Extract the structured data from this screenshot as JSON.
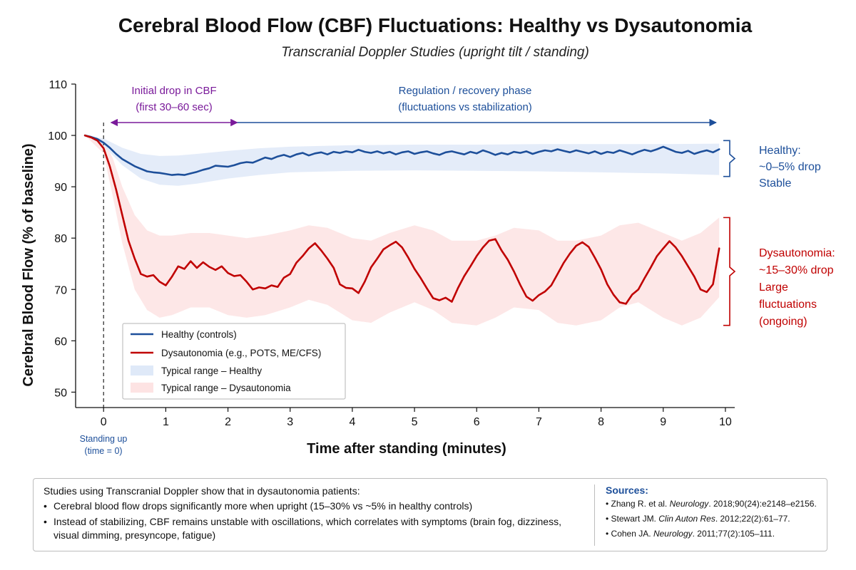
{
  "chart_data": {
    "type": "line",
    "title": "Cerebral Blood Flow (CBF) Fluctuations: Healthy vs Dysautonomia",
    "subtitle": "Transcranial Doppler Studies (upright tilt / standing)",
    "xlabel": "Time after standing (minutes)",
    "ylabel": "Cerebral Blood Flow (% of baseline)",
    "xlim": [
      -0.45,
      10.15
    ],
    "ylim": [
      47,
      110
    ],
    "xticks": [
      0,
      1,
      2,
      3,
      4,
      5,
      6,
      7,
      8,
      9,
      10
    ],
    "yticks": [
      50,
      60,
      70,
      80,
      90,
      100,
      110
    ],
    "grid": false,
    "legend_position": "lower-left",
    "series": [
      {
        "name": "Healthy (controls)",
        "color": "#1d4f9a",
        "x": [
          -0.3,
          -0.2,
          -0.1,
          0,
          0.1,
          0.2,
          0.3,
          0.4,
          0.5,
          0.6,
          0.7,
          0.8,
          0.9,
          1.0,
          1.1,
          1.2,
          1.3,
          1.4,
          1.5,
          1.6,
          1.7,
          1.8,
          1.9,
          2.0,
          2.1,
          2.2,
          2.3,
          2.4,
          2.5,
          2.6,
          2.7,
          2.8,
          2.9,
          3.0,
          3.1,
          3.2,
          3.3,
          3.4,
          3.5,
          3.6,
          3.7,
          3.8,
          3.9,
          4.0,
          4.1,
          4.2,
          4.3,
          4.4,
          4.5,
          4.6,
          4.7,
          4.8,
          4.9,
          5.0,
          5.1,
          5.2,
          5.3,
          5.4,
          5.5,
          5.6,
          5.7,
          5.8,
          5.9,
          6.0,
          6.1,
          6.2,
          6.3,
          6.4,
          6.5,
          6.6,
          6.7,
          6.8,
          6.9,
          7.0,
          7.1,
          7.2,
          7.3,
          7.4,
          7.5,
          7.6,
          7.7,
          7.8,
          7.9,
          8.0,
          8.1,
          8.2,
          8.3,
          8.4,
          8.5,
          8.6,
          8.7,
          8.8,
          8.9,
          9.0,
          9.1,
          9.2,
          9.3,
          9.4,
          9.5,
          9.6,
          9.7,
          9.8,
          9.9
        ],
        "values": [
          100.0,
          99.7,
          99.3,
          98.6,
          97.6,
          96.4,
          95.4,
          94.7,
          94.0,
          93.5,
          93.0,
          92.8,
          92.7,
          92.5,
          92.3,
          92.4,
          92.3,
          92.6,
          92.9,
          93.3,
          93.6,
          94.1,
          94.0,
          93.9,
          94.2,
          94.6,
          94.8,
          94.7,
          95.2,
          95.7,
          95.4,
          95.9,
          96.2,
          95.8,
          96.3,
          96.6,
          96.1,
          96.5,
          96.7,
          96.3,
          96.8,
          96.6,
          96.9,
          96.7,
          97.2,
          96.8,
          96.6,
          96.9,
          96.5,
          96.8,
          96.3,
          96.7,
          96.9,
          96.4,
          96.7,
          96.9,
          96.5,
          96.2,
          96.7,
          96.9,
          96.6,
          96.3,
          96.8,
          96.5,
          97.1,
          96.7,
          96.2,
          96.6,
          96.3,
          96.8,
          96.6,
          96.9,
          96.4,
          96.8,
          97.1,
          96.9,
          97.3,
          97.0,
          96.7,
          97.1,
          96.8,
          96.5,
          96.9,
          96.4,
          96.8,
          96.6,
          97.1,
          96.7,
          96.3,
          96.8,
          97.2,
          96.9,
          97.3,
          97.8,
          97.3,
          96.8,
          96.6,
          97.0,
          96.4,
          96.8,
          97.1,
          96.7,
          97.3
        ]
      },
      {
        "name": "Dysautonomia (e.g., POTS, ME/CFS)",
        "color": "#c00000",
        "x": [
          -0.3,
          -0.2,
          -0.1,
          0,
          0.1,
          0.2,
          0.3,
          0.4,
          0.5,
          0.6,
          0.7,
          0.8,
          0.9,
          1.0,
          1.1,
          1.2,
          1.3,
          1.4,
          1.5,
          1.6,
          1.7,
          1.8,
          1.9,
          2.0,
          2.1,
          2.2,
          2.3,
          2.4,
          2.5,
          2.6,
          2.7,
          2.8,
          2.9,
          3.0,
          3.1,
          3.2,
          3.3,
          3.4,
          3.5,
          3.6,
          3.7,
          3.8,
          3.9,
          4.0,
          4.1,
          4.2,
          4.3,
          4.4,
          4.5,
          4.6,
          4.7,
          4.8,
          4.9,
          5.0,
          5.1,
          5.2,
          5.3,
          5.4,
          5.5,
          5.6,
          5.7,
          5.8,
          5.9,
          6.0,
          6.1,
          6.2,
          6.3,
          6.4,
          6.5,
          6.6,
          6.7,
          6.8,
          6.9,
          7.0,
          7.1,
          7.2,
          7.3,
          7.4,
          7.5,
          7.6,
          7.7,
          7.8,
          7.9,
          8.0,
          8.1,
          8.2,
          8.3,
          8.4,
          8.5,
          8.6,
          8.7,
          8.8,
          8.9,
          9.0,
          9.1,
          9.2,
          9.3,
          9.4,
          9.5,
          9.6,
          9.7,
          9.8,
          9.9
        ],
        "values": [
          100.0,
          99.6,
          99.0,
          97.5,
          94.0,
          89.5,
          84.5,
          79.5,
          76.0,
          73.0,
          72.5,
          72.8,
          71.5,
          70.8,
          72.5,
          74.5,
          74.0,
          75.5,
          74.2,
          75.3,
          74.4,
          73.8,
          74.5,
          73.2,
          72.6,
          72.8,
          71.5,
          70.0,
          70.4,
          70.2,
          70.8,
          70.5,
          72.3,
          73.0,
          75.2,
          76.5,
          78.0,
          79.0,
          77.6,
          76.0,
          74.2,
          71.0,
          70.3,
          70.2,
          69.3,
          71.5,
          74.3,
          76.0,
          77.8,
          78.6,
          79.3,
          78.2,
          76.2,
          74.0,
          72.2,
          70.2,
          68.3,
          67.9,
          68.4,
          67.6,
          70.3,
          72.6,
          74.5,
          76.5,
          78.2,
          79.5,
          79.8,
          77.6,
          75.8,
          73.5,
          70.9,
          68.6,
          67.8,
          68.9,
          69.6,
          70.8,
          73.0,
          75.2,
          77.0,
          78.5,
          79.2,
          78.3,
          76.2,
          73.9,
          71.0,
          69.0,
          67.5,
          67.2,
          69.0,
          70.0,
          72.2,
          74.3,
          76.5,
          78.0,
          79.4,
          78.2,
          76.5,
          74.5,
          72.5,
          70.0,
          69.5,
          71.0,
          78.0
        ]
      }
    ],
    "bands": [
      {
        "name": "Typical range – Healthy",
        "color": "#dfe9f8",
        "x": [
          -0.3,
          0,
          0.3,
          0.6,
          0.9,
          1.2,
          1.5,
          2.0,
          2.5,
          3.0,
          4.0,
          5.0,
          6.0,
          7.0,
          8.0,
          9.0,
          9.9
        ],
        "lower": [
          100.0,
          98.0,
          94.2,
          91.6,
          90.4,
          90.2,
          90.6,
          91.6,
          92.3,
          92.8,
          93.1,
          93.2,
          93.1,
          93.0,
          92.8,
          92.6,
          92.3
        ],
        "upper": [
          100.0,
          99.4,
          97.6,
          96.4,
          96.0,
          96.1,
          96.4,
          97.0,
          97.5,
          97.8,
          98.1,
          98.2,
          98.2,
          98.3,
          98.3,
          98.3,
          98.4
        ]
      },
      {
        "name": "Typical range – Dysautonomia",
        "color": "#fde3e3",
        "x": [
          -0.3,
          0,
          0.15,
          0.3,
          0.5,
          0.7,
          0.9,
          1.1,
          1.4,
          1.7,
          2.0,
          2.3,
          2.6,
          3.0,
          3.3,
          3.6,
          4.0,
          4.3,
          4.6,
          5.0,
          5.3,
          5.6,
          6.0,
          6.3,
          6.6,
          7.0,
          7.3,
          7.6,
          8.0,
          8.3,
          8.6,
          9.0,
          9.3,
          9.6,
          9.9
        ],
        "lower": [
          100.0,
          96.5,
          88.0,
          79.0,
          70.0,
          66.0,
          64.5,
          65.0,
          66.5,
          66.5,
          65.0,
          64.5,
          65.0,
          66.5,
          68.0,
          67.0,
          64.0,
          63.5,
          65.5,
          67.5,
          66.0,
          63.5,
          63.0,
          64.5,
          66.5,
          66.0,
          63.5,
          63.0,
          64.0,
          66.5,
          67.5,
          64.5,
          63.0,
          64.5,
          68.5
        ],
        "upper": [
          100.0,
          99.0,
          95.5,
          90.0,
          84.5,
          81.5,
          80.5,
          80.5,
          81.0,
          81.0,
          80.5,
          80.0,
          80.5,
          81.5,
          82.5,
          82.0,
          80.0,
          79.5,
          81.0,
          82.5,
          81.5,
          79.5,
          79.5,
          80.5,
          82.0,
          81.5,
          79.5,
          79.5,
          80.5,
          82.5,
          83.0,
          81.0,
          79.5,
          81.0,
          84.0
        ]
      }
    ],
    "annotations": {
      "initial_drop": {
        "line1": "Initial drop in CBF",
        "line2": "(first 30–60 sec)",
        "x_start": 0.12,
        "x_end": 2.15
      },
      "regulation": {
        "line1": "Regulation / recovery phase",
        "line2": "(fluctuations vs stabilization)",
        "x_start": 2.15,
        "x_end": 9.85
      },
      "healthy_side": {
        "line1": "Healthy:",
        "line2": "~0–5% drop",
        "line3": "Stable",
        "y_top": 99,
        "y_bottom": 92
      },
      "dys_side": {
        "line1": "Dysautonomia:",
        "line2": "~15–30% drop",
        "line3": "Large",
        "line4": "fluctuations",
        "line5": "(ongoing)",
        "y_top": 84,
        "y_bottom": 63
      },
      "standing": {
        "line1": "Standing up",
        "line2": "(time = 0)",
        "x": 0
      }
    }
  },
  "legend": {
    "items": [
      {
        "label": "Healthy (controls)",
        "type": "line",
        "color": "#1d4f9a"
      },
      {
        "label": "Dysautonomia (e.g., POTS, ME/CFS)",
        "type": "line",
        "color": "#c00000"
      },
      {
        "label": "Typical range – Healthy",
        "type": "band",
        "color": "#dfe9f8"
      },
      {
        "label": "Typical range – Dysautonomia",
        "type": "band",
        "color": "#fde3e3"
      }
    ]
  },
  "notes": {
    "intro": "Studies using Transcranial Doppler show that in dysautonomia patients:",
    "bullets": [
      "Cerebral blood flow drops significantly more when upright (15–30% vs ~5% in healthy controls)",
      "Instead of stabilizing, CBF remains unstable with oscillations, which correlates with symptoms (brain fog, dizziness, visual dimming, presyncope, fatigue)"
    ]
  },
  "sources": {
    "heading": "Sources:",
    "items": [
      {
        "author": "Zhang R. et al.",
        "journal": "Neurology",
        "detail": ". 2018;90(24):e2148–e2156."
      },
      {
        "author": "Stewart JM.",
        "journal": "Clin Auton Res",
        "detail": ". 2012;22(2):61–77."
      },
      {
        "author": "Cohen JA.",
        "journal": "Neurology",
        "detail": ". 2011;77(2):105–111."
      }
    ]
  }
}
